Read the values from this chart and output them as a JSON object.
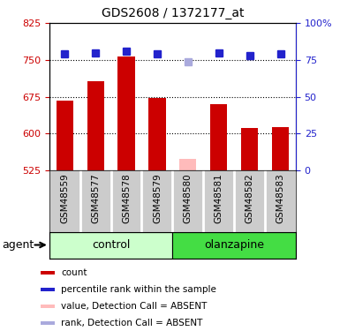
{
  "title": "GDS2608 / 1372177_at",
  "samples": [
    "GSM48559",
    "GSM48577",
    "GSM48578",
    "GSM48579",
    "GSM48580",
    "GSM48581",
    "GSM48582",
    "GSM48583"
  ],
  "bar_values": [
    668,
    706,
    757,
    672,
    549,
    660,
    612,
    614
  ],
  "bar_colors": [
    "#cc0000",
    "#cc0000",
    "#cc0000",
    "#cc0000",
    "#ffbbbb",
    "#cc0000",
    "#cc0000",
    "#cc0000"
  ],
  "rank_values": [
    79,
    80,
    81,
    79,
    74,
    80,
    78,
    79
  ],
  "rank_colors": [
    "#2222cc",
    "#2222cc",
    "#2222cc",
    "#2222cc",
    "#aaaadd",
    "#2222cc",
    "#2222cc",
    "#2222cc"
  ],
  "groups": [
    {
      "label": "control",
      "start": 0,
      "end": 4,
      "color": "#ccffcc"
    },
    {
      "label": "olanzapine",
      "start": 4,
      "end": 8,
      "color": "#44dd44"
    }
  ],
  "ylim_left": [
    525,
    825
  ],
  "ylim_right": [
    0,
    100
  ],
  "yticks_left": [
    525,
    600,
    675,
    750,
    825
  ],
  "yticks_right": [
    0,
    25,
    50,
    75,
    100
  ],
  "ytick_right_labels": [
    "0",
    "25",
    "50",
    "75",
    "100%"
  ],
  "grid_values": [
    600,
    675,
    750
  ],
  "bar_width": 0.55,
  "rank_marker_size": 6,
  "agent_label": "agent",
  "left_axis_color": "#cc0000",
  "right_axis_color": "#2222cc",
  "sample_bg_color": "#cccccc",
  "legend_items": [
    {
      "color": "#cc0000",
      "label": "count",
      "type": "square"
    },
    {
      "color": "#2222cc",
      "label": "percentile rank within the sample",
      "type": "square"
    },
    {
      "color": "#ffbbbb",
      "label": "value, Detection Call = ABSENT",
      "type": "square"
    },
    {
      "color": "#aaaadd",
      "label": "rank, Detection Call = ABSENT",
      "type": "square"
    }
  ]
}
